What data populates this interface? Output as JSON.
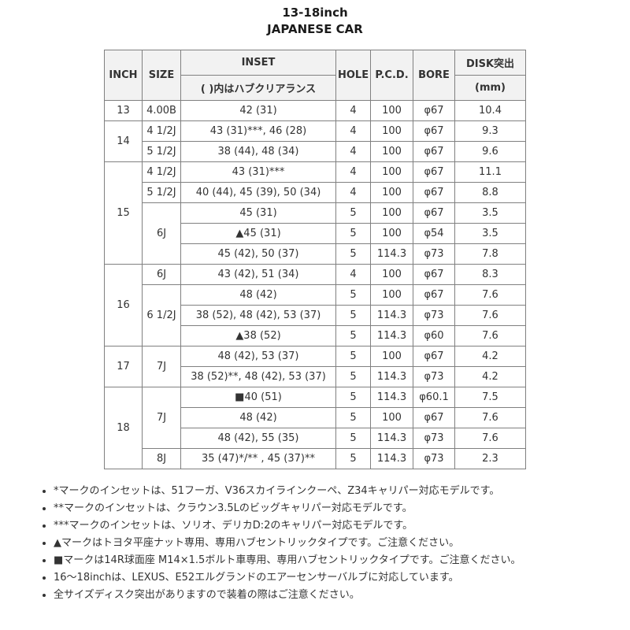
{
  "title_line1": "13-18inch",
  "title_line2": "JAPANESE CAR",
  "table": {
    "headers": {
      "inch": "INCH",
      "size": "SIZE",
      "inset": "INSET",
      "inset_sub": "( )内はハブクリアランス",
      "hole": "HOLE",
      "pcd": "P.C.D.",
      "bore": "BORE",
      "disk": "DISK突出",
      "disk_sub": "(mm)"
    },
    "groups": [
      {
        "inch": "13",
        "sizes": [
          {
            "size": "4.00B",
            "rows": [
              {
                "inset": "42 (31)",
                "hole": "4",
                "pcd": "100",
                "bore": "φ67",
                "disk": "10.4"
              }
            ]
          }
        ]
      },
      {
        "inch": "14",
        "sizes": [
          {
            "size": "4 1/2J",
            "rows": [
              {
                "inset": "43 (31)***, 46 (28)",
                "hole": "4",
                "pcd": "100",
                "bore": "φ67",
                "disk": "9.3"
              }
            ]
          },
          {
            "size": "5 1/2J",
            "rows": [
              {
                "inset": "38 (44), 48 (34)",
                "hole": "4",
                "pcd": "100",
                "bore": "φ67",
                "disk": "9.6"
              }
            ]
          }
        ]
      },
      {
        "inch": "15",
        "sizes": [
          {
            "size": "4 1/2J",
            "rows": [
              {
                "inset": "43 (31)***",
                "hole": "4",
                "pcd": "100",
                "bore": "φ67",
                "disk": "11.1"
              }
            ]
          },
          {
            "size": "5 1/2J",
            "rows": [
              {
                "inset": "40 (44), 45 (39), 50 (34)",
                "hole": "4",
                "pcd": "100",
                "bore": "φ67",
                "disk": "8.8"
              }
            ]
          },
          {
            "size": "6J",
            "rows": [
              {
                "inset": "45 (31)",
                "hole": "5",
                "pcd": "100",
                "bore": "φ67",
                "disk": "3.5"
              },
              {
                "inset": "▲45 (31)",
                "hole": "5",
                "pcd": "100",
                "bore": "φ54",
                "disk": "3.5"
              },
              {
                "inset": "45 (42), 50 (37)",
                "hole": "5",
                "pcd": "114.3",
                "bore": "φ73",
                "disk": "7.8"
              }
            ]
          }
        ]
      },
      {
        "inch": "16",
        "sizes": [
          {
            "size": "6J",
            "rows": [
              {
                "inset": "43 (42), 51 (34)",
                "hole": "4",
                "pcd": "100",
                "bore": "φ67",
                "disk": "8.3"
              }
            ]
          },
          {
            "size": "6 1/2J",
            "rows": [
              {
                "inset": "48 (42)",
                "hole": "5",
                "pcd": "100",
                "bore": "φ67",
                "disk": "7.6"
              },
              {
                "inset": "38 (52), 48 (42), 53 (37)",
                "hole": "5",
                "pcd": "114.3",
                "bore": "φ73",
                "disk": "7.6"
              },
              {
                "inset": "▲38 (52)",
                "hole": "5",
                "pcd": "114.3",
                "bore": "φ60",
                "disk": "7.6"
              }
            ]
          }
        ]
      },
      {
        "inch": "17",
        "sizes": [
          {
            "size": "7J",
            "rows": [
              {
                "inset": "48 (42), 53 (37)",
                "hole": "5",
                "pcd": "100",
                "bore": "φ67",
                "disk": "4.2"
              },
              {
                "inset": "38 (52)**, 48 (42), 53 (37)",
                "hole": "5",
                "pcd": "114.3",
                "bore": "φ73",
                "disk": "4.2"
              }
            ]
          }
        ]
      },
      {
        "inch": "18",
        "sizes": [
          {
            "size": "7J",
            "rows": [
              {
                "inset": "■40 (51)",
                "hole": "5",
                "pcd": "114.3",
                "bore": "φ60.1",
                "disk": "7.5"
              },
              {
                "inset": "48 (42)",
                "hole": "5",
                "pcd": "100",
                "bore": "φ67",
                "disk": "7.6"
              },
              {
                "inset": "48 (42), 55 (35)",
                "hole": "5",
                "pcd": "114.3",
                "bore": "φ73",
                "disk": "7.6"
              }
            ]
          },
          {
            "size": "8J",
            "rows": [
              {
                "inset": "35 (47)*/** , 45 (37)**",
                "hole": "5",
                "pcd": "114.3",
                "bore": "φ73",
                "disk": "2.3"
              }
            ]
          }
        ]
      }
    ]
  },
  "notes": [
    "*マークのインセットは、51フーガ、V36スカイラインクーペ、Z34キャリパー対応モデルです。",
    "**マークのインセットは、クラウン3.5Lのビッグキャリパー対応モデルです。",
    "***マークのインセットは、ソリオ、デリカD:2のキャリパー対応モデルです。",
    "▲マークはトヨタ平座ナット専用、専用ハブセントリックタイプです。ご注意ください。",
    "■マークは14R球面座 M14×1.5ボルト車専用、専用ハブセントリックタイプです。ご注意ください。",
    "16～18inchは、LEXUS、E52エルグランドのエアーセンサーバルブに対応しています。",
    "全サイズディスク突出がありますので装着の際はご注意ください。"
  ]
}
